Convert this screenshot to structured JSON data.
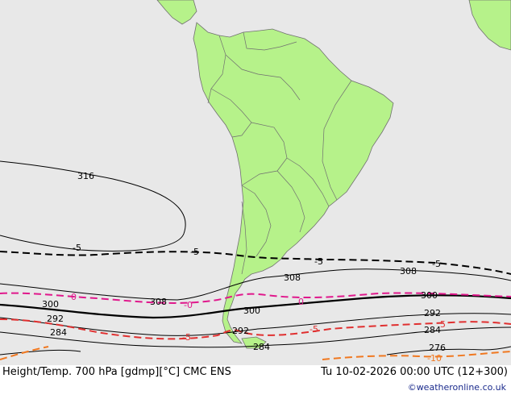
{
  "map": {
    "colors": {
      "ocean": "#e8e8e8",
      "land": "#b6f28a",
      "border": "#707070",
      "height_contour": "#000000",
      "temp_minus5": "#000000",
      "temp_0": "#e0188c",
      "temp_neg5_red": "#e03030",
      "temp_neg10": "#f07820"
    },
    "height_labels": [
      {
        "text": "316"
      },
      {
        "text": "308"
      },
      {
        "text": "308"
      },
      {
        "text": "308"
      },
      {
        "text": "300"
      },
      {
        "text": "300"
      },
      {
        "text": "300"
      },
      {
        "text": "292"
      },
      {
        "text": "292"
      },
      {
        "text": "292"
      },
      {
        "text": "284"
      },
      {
        "text": "284"
      },
      {
        "text": "284"
      },
      {
        "text": "276"
      }
    ],
    "temp_labels": [
      {
        "text": "-5",
        "color": "#000000"
      },
      {
        "text": "-5",
        "color": "#000000"
      },
      {
        "text": "-5",
        "color": "#000000"
      },
      {
        "text": "-5",
        "color": "#000000"
      },
      {
        "text": "0",
        "color": "#e0188c"
      },
      {
        "text": "-0",
        "color": "#e0188c"
      },
      {
        "text": "0",
        "color": "#e0188c"
      },
      {
        "text": "-5",
        "color": "#e03030"
      },
      {
        "text": "-5",
        "color": "#e03030"
      },
      {
        "text": "5",
        "color": "#e03030"
      },
      {
        "text": "-10",
        "color": "#f07820"
      }
    ]
  },
  "footer": {
    "title": "Height/Temp. 700 hPa [gdmp][°C] CMC ENS",
    "time": "Tu 10-02-2026 00:00 UTC (12+300)",
    "credit": "©weatheronline.co.uk"
  }
}
